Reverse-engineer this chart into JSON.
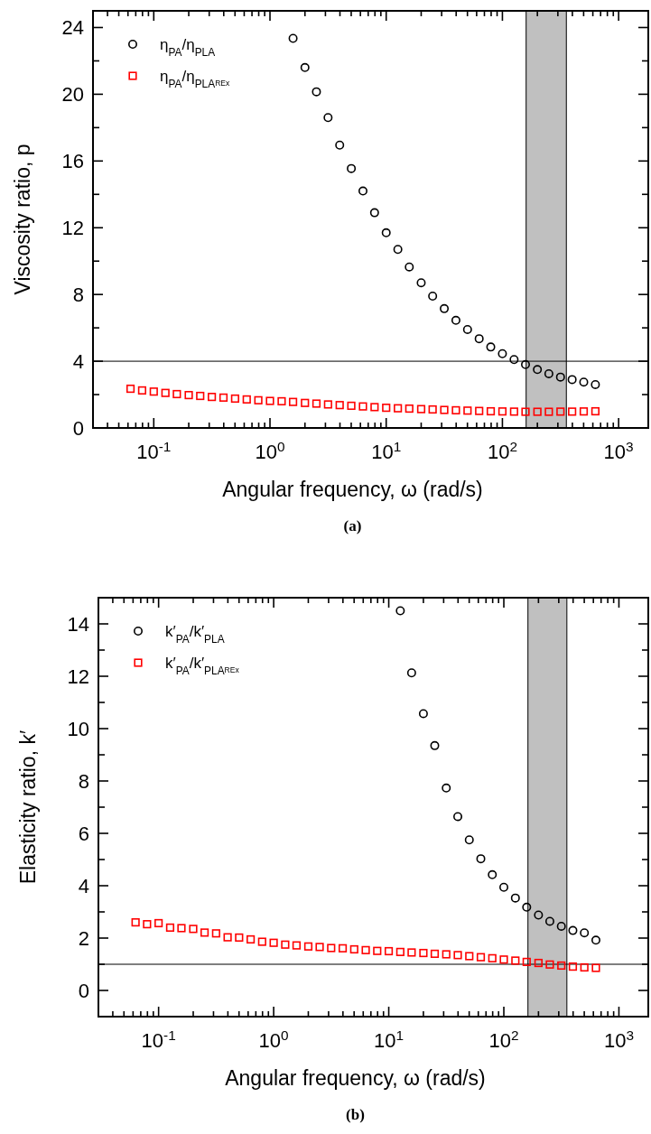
{
  "chart_data": [
    {
      "type": "scatter",
      "xlabel": "Angular frequency, ω (rad/s)",
      "ylabel": "Viscosity ratio, p",
      "annotations": [
        "(a)"
      ],
      "log": "x",
      "legend": "top left",
      "grid": false,
      "xlim": [
        0.03,
        1800
      ],
      "ylim": [
        0,
        25
      ],
      "xticks": [
        {
          "value": 0.04,
          "label": null
        },
        {
          "value": 0.05,
          "label": null
        },
        {
          "value": 0.06,
          "label": null
        },
        {
          "value": 0.07,
          "label": null
        },
        {
          "value": 0.08,
          "label": null
        },
        {
          "value": 0.09,
          "label": null
        },
        {
          "value": 0.1,
          "label": "10$^{-1}$"
        },
        {
          "value": 0.2,
          "label": null
        },
        {
          "value": 0.3,
          "label": null
        },
        {
          "value": 0.4,
          "label": null
        },
        {
          "value": 0.5,
          "label": null
        },
        {
          "value": 0.6,
          "label": null
        },
        {
          "value": 0.7,
          "label": null
        },
        {
          "value": 0.8,
          "label": null
        },
        {
          "value": 0.9,
          "label": null
        },
        {
          "value": 1,
          "label": "10$^{0}$"
        },
        {
          "value": 2,
          "label": null
        },
        {
          "value": 3,
          "label": null
        },
        {
          "value": 4,
          "label": null
        },
        {
          "value": 5,
          "label": null
        },
        {
          "value": 6,
          "label": null
        },
        {
          "value": 7,
          "label": null
        },
        {
          "value": 8,
          "label": null
        },
        {
          "value": 9,
          "label": null
        },
        {
          "value": 10,
          "label": "10$^{1}$"
        },
        {
          "value": 20,
          "label": null
        },
        {
          "value": 30,
          "label": null
        },
        {
          "value": 40,
          "label": null
        },
        {
          "value": 50,
          "label": null
        },
        {
          "value": 60,
          "label": null
        },
        {
          "value": 70,
          "label": null
        },
        {
          "value": 80,
          "label": null
        },
        {
          "value": 90,
          "label": null
        },
        {
          "value": 100,
          "label": "10$^{2}$"
        },
        {
          "value": 200,
          "label": null
        },
        {
          "value": 300,
          "label": null
        },
        {
          "value": 400,
          "label": null
        },
        {
          "value": 500,
          "label": null
        },
        {
          "value": 600,
          "label": null
        },
        {
          "value": 700,
          "label": null
        },
        {
          "value": 800,
          "label": null
        },
        {
          "value": 900,
          "label": null
        },
        {
          "value": 1000,
          "label": "10$^{3}$"
        }
      ],
      "yticks": [
        0,
        {
          "value": 2,
          "label": null
        },
        4,
        {
          "value": 6,
          "label": null
        },
        8,
        {
          "value": 10,
          "label": null
        },
        12,
        {
          "value": 14,
          "label": null
        },
        16,
        {
          "value": 18,
          "label": null
        },
        20,
        {
          "value": 22,
          "label": null
        },
        24
      ],
      "ref_lines": [
        {
          "axis": "y",
          "value": 4,
          "color": "#000000"
        }
      ],
      "bands": [
        {
          "axis": "x",
          "from": 160,
          "to": 355,
          "color": "#c0c0c0"
        }
      ],
      "series": [
        {
          "name": "η$_{PA}$/η$_{PLA}$",
          "color": "#000000",
          "marker": "circle",
          "x": [
            1.58,
            2.0,
            2.51,
            3.16,
            3.98,
            5.01,
            6.31,
            7.94,
            10,
            12.6,
            15.8,
            20.0,
            25.1,
            31.6,
            39.8,
            50.1,
            63.1,
            79.4,
            100,
            126,
            158,
            200,
            251,
            316,
            398,
            501,
            631
          ],
          "values": [
            23.35,
            21.6,
            20.15,
            18.6,
            16.95,
            15.55,
            14.2,
            12.9,
            11.7,
            10.7,
            9.65,
            8.7,
            7.9,
            7.15,
            6.45,
            5.9,
            5.35,
            4.85,
            4.45,
            4.1,
            3.8,
            3.5,
            3.25,
            3.05,
            2.9,
            2.75,
            2.6
          ]
        },
        {
          "name": "η$_{PA}$/η$_{PLA}$$_{REx}$",
          "color": "#ff0000",
          "marker": "square",
          "x": [
            0.0631,
            0.0794,
            0.1,
            0.126,
            0.158,
            0.2,
            0.251,
            0.316,
            0.398,
            0.501,
            0.631,
            0.794,
            1,
            1.26,
            1.58,
            2.0,
            2.51,
            3.16,
            3.98,
            5.01,
            6.31,
            7.94,
            10,
            12.6,
            15.8,
            20.0,
            25.1,
            31.6,
            39.8,
            50.1,
            63.1,
            79.4,
            100,
            126,
            158,
            200,
            251,
            316,
            398,
            501,
            631
          ],
          "values": [
            2.35,
            2.25,
            2.18,
            2.1,
            2.03,
            1.97,
            1.92,
            1.86,
            1.82,
            1.76,
            1.71,
            1.66,
            1.62,
            1.6,
            1.56,
            1.5,
            1.46,
            1.41,
            1.37,
            1.33,
            1.29,
            1.25,
            1.21,
            1.18,
            1.16,
            1.13,
            1.11,
            1.08,
            1.06,
            1.04,
            1.02,
            1.0,
            0.99,
            0.98,
            0.97,
            0.97,
            0.97,
            0.98,
            0.98,
            0.99,
            1.0
          ]
        }
      ]
    },
    {
      "type": "scatter",
      "xlabel": "Angular frequency, ω (rad/s)",
      "ylabel": "Elasticity ratio, k′",
      "annotations": [
        "(b)"
      ],
      "log": "x",
      "legend": "top left",
      "grid": false,
      "xlim": [
        0.03,
        1800
      ],
      "ylim": [
        -1,
        15
      ],
      "xticks": [
        {
          "value": 0.04,
          "label": null
        },
        {
          "value": 0.05,
          "label": null
        },
        {
          "value": 0.06,
          "label": null
        },
        {
          "value": 0.07,
          "label": null
        },
        {
          "value": 0.08,
          "label": null
        },
        {
          "value": 0.09,
          "label": null
        },
        {
          "value": 0.1,
          "label": "10$^{-1}$"
        },
        {
          "value": 0.2,
          "label": null
        },
        {
          "value": 0.3,
          "label": null
        },
        {
          "value": 0.4,
          "label": null
        },
        {
          "value": 0.5,
          "label": null
        },
        {
          "value": 0.6,
          "label": null
        },
        {
          "value": 0.7,
          "label": null
        },
        {
          "value": 0.8,
          "label": null
        },
        {
          "value": 0.9,
          "label": null
        },
        {
          "value": 1,
          "label": "10$^{0}$"
        },
        {
          "value": 2,
          "label": null
        },
        {
          "value": 3,
          "label": null
        },
        {
          "value": 4,
          "label": null
        },
        {
          "value": 5,
          "label": null
        },
        {
          "value": 6,
          "label": null
        },
        {
          "value": 7,
          "label": null
        },
        {
          "value": 8,
          "label": null
        },
        {
          "value": 9,
          "label": null
        },
        {
          "value": 10,
          "label": "10$^{1}$"
        },
        {
          "value": 20,
          "label": null
        },
        {
          "value": 30,
          "label": null
        },
        {
          "value": 40,
          "label": null
        },
        {
          "value": 50,
          "label": null
        },
        {
          "value": 60,
          "label": null
        },
        {
          "value": 70,
          "label": null
        },
        {
          "value": 80,
          "label": null
        },
        {
          "value": 90,
          "label": null
        },
        {
          "value": 100,
          "label": "10$^{2}$"
        },
        {
          "value": 200,
          "label": null
        },
        {
          "value": 300,
          "label": null
        },
        {
          "value": 400,
          "label": null
        },
        {
          "value": 500,
          "label": null
        },
        {
          "value": 600,
          "label": null
        },
        {
          "value": 700,
          "label": null
        },
        {
          "value": 800,
          "label": null
        },
        {
          "value": 900,
          "label": null
        },
        {
          "value": 1000,
          "label": "10$^{3}$"
        }
      ],
      "yticks": [
        {
          "value": -1,
          "label": null
        },
        0,
        {
          "value": 1,
          "label": null
        },
        2,
        {
          "value": 3,
          "label": null
        },
        4,
        {
          "value": 5,
          "label": null
        },
        6,
        {
          "value": 7,
          "label": null
        },
        8,
        {
          "value": 9,
          "label": null
        },
        10,
        {
          "value": 11,
          "label": null
        },
        12,
        {
          "value": 13,
          "label": null
        },
        14
      ],
      "ref_lines": [
        {
          "axis": "y",
          "value": 1,
          "color": "#000000"
        }
      ],
      "bands": [
        {
          "axis": "x",
          "from": 162,
          "to": 353,
          "color": "#c0c0c0"
        }
      ],
      "series": [
        {
          "name": "k′$_{PA}$/k′$_{PLA}$",
          "color": "#000000",
          "marker": "circle",
          "x": [
            12.6,
            15.8,
            20.0,
            25.1,
            31.6,
            39.8,
            50.1,
            63.1,
            79.4,
            100,
            126,
            158,
            200,
            251,
            316,
            398,
            501,
            631
          ],
          "values": [
            14.5,
            12.13,
            10.57,
            9.35,
            7.73,
            6.64,
            5.75,
            5.03,
            4.42,
            3.94,
            3.53,
            3.18,
            2.88,
            2.64,
            2.45,
            2.29,
            2.2,
            1.92
          ]
        },
        {
          "name": "k′$_{PA}$/k′$_{PLA}$$_{REx}$",
          "color": "#ff0000",
          "marker": "square",
          "x": [
            0.0631,
            0.0794,
            0.1,
            0.126,
            0.158,
            0.2,
            0.251,
            0.316,
            0.398,
            0.501,
            0.631,
            0.794,
            1,
            1.26,
            1.58,
            2.0,
            2.51,
            3.16,
            3.98,
            5.01,
            6.31,
            7.94,
            10,
            12.6,
            15.8,
            20.0,
            25.1,
            31.6,
            39.8,
            50.1,
            63.1,
            79.4,
            100,
            126,
            158,
            200,
            251,
            316,
            398,
            501,
            631
          ],
          "values": [
            2.6,
            2.53,
            2.57,
            2.4,
            2.38,
            2.35,
            2.21,
            2.18,
            2.03,
            2.02,
            1.95,
            1.86,
            1.82,
            1.75,
            1.72,
            1.68,
            1.66,
            1.62,
            1.61,
            1.57,
            1.54,
            1.51,
            1.5,
            1.47,
            1.45,
            1.43,
            1.4,
            1.38,
            1.35,
            1.31,
            1.27,
            1.23,
            1.18,
            1.14,
            1.09,
            1.05,
            0.99,
            0.95,
            0.91,
            0.88,
            0.86
          ]
        }
      ]
    }
  ]
}
